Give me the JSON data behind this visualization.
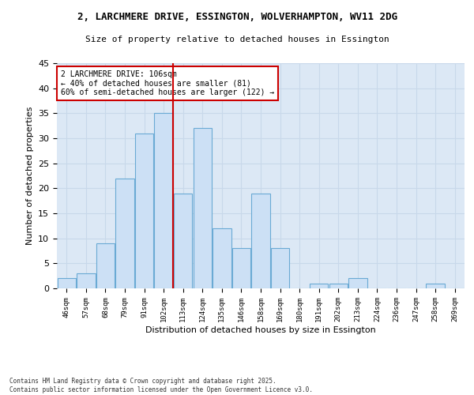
{
  "title1": "2, LARCHMERE DRIVE, ESSINGTON, WOLVERHAMPTON, WV11 2DG",
  "title2": "Size of property relative to detached houses in Essington",
  "xlabel": "Distribution of detached houses by size in Essington",
  "ylabel": "Number of detached properties",
  "bar_labels": [
    "46sqm",
    "57sqm",
    "68sqm",
    "79sqm",
    "91sqm",
    "102sqm",
    "113sqm",
    "124sqm",
    "135sqm",
    "146sqm",
    "158sqm",
    "169sqm",
    "180sqm",
    "191sqm",
    "202sqm",
    "213sqm",
    "224sqm",
    "236sqm",
    "247sqm",
    "258sqm",
    "269sqm"
  ],
  "bar_values": [
    2,
    3,
    9,
    22,
    31,
    35,
    19,
    32,
    12,
    8,
    19,
    8,
    0,
    1,
    1,
    2,
    0,
    0,
    0,
    1,
    0
  ],
  "bar_color": "#cce0f5",
  "bar_edge_color": "#6aaad4",
  "vline_x": 5.5,
  "vline_color": "#cc0000",
  "annotation_text": "2 LARCHMERE DRIVE: 106sqm\n← 40% of detached houses are smaller (81)\n60% of semi-detached houses are larger (122) →",
  "annotation_box_color": "#cc0000",
  "ylim": [
    0,
    45
  ],
  "yticks": [
    0,
    5,
    10,
    15,
    20,
    25,
    30,
    35,
    40,
    45
  ],
  "bg_color": "#ffffff",
  "plot_bg_color": "#dce8f5",
  "grid_color": "#c8d8ea",
  "footnote": "Contains HM Land Registry data © Crown copyright and database right 2025.\nContains public sector information licensed under the Open Government Licence v3.0."
}
